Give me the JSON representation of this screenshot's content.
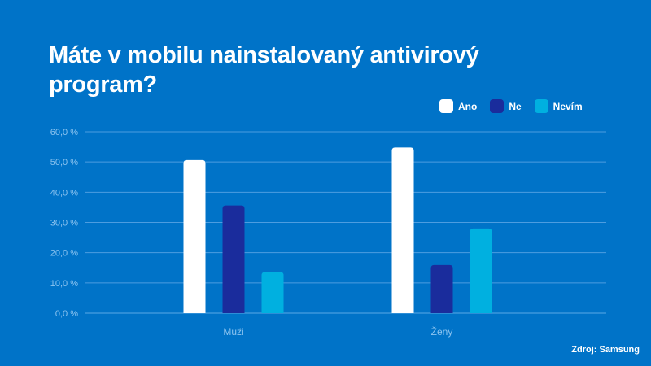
{
  "chart_data": {
    "type": "bar",
    "title": "Máte v mobilu nainstalovaný antivirový program?",
    "categories": [
      "Muži",
      "Ženy"
    ],
    "series": [
      {
        "name": "Ano",
        "color": "#ffffff",
        "values": [
          50.6,
          54.8
        ]
      },
      {
        "name": "Ne",
        "color": "#1a2c9c",
        "values": [
          35.6,
          15.9
        ]
      },
      {
        "name": "Nevím",
        "color": "#00b0e0",
        "values": [
          13.6,
          28.0
        ]
      }
    ],
    "ylim": [
      0,
      60
    ],
    "yticks": [
      "0,0 %",
      "10,0 %",
      "20,0 %",
      "30,0 %",
      "40,0 %",
      "50,0 %",
      "60,0 %"
    ],
    "grid": true,
    "legend": "top-right",
    "source": "Zdroj: Samsung"
  }
}
